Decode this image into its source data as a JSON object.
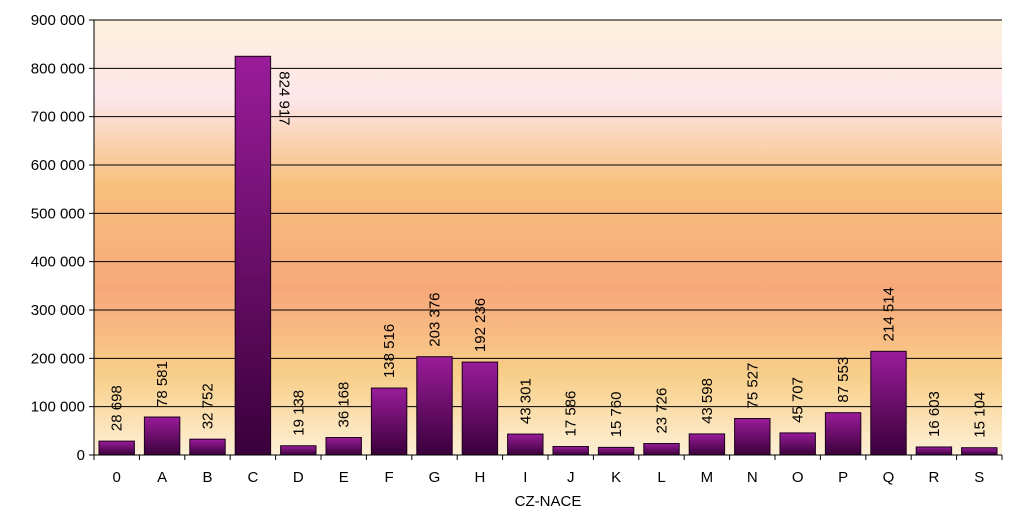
{
  "chart_data": {
    "type": "bar",
    "xlabel": "CZ-NACE",
    "ylabel": "",
    "ylim": [
      0,
      900000
    ],
    "yticks": [
      0,
      100000,
      200000,
      300000,
      400000,
      500000,
      600000,
      700000,
      800000,
      900000
    ],
    "ytick_labels": [
      "0",
      "100 000",
      "200 000",
      "300 000",
      "400 000",
      "500 000",
      "600 000",
      "700 000",
      "800 000",
      "900 000"
    ],
    "grid": true,
    "legend": "none",
    "categories": [
      "0",
      "A",
      "B",
      "C",
      "D",
      "E",
      "F",
      "G",
      "H",
      "I",
      "J",
      "K",
      "L",
      "M",
      "N",
      "O",
      "P",
      "Q",
      "R",
      "S"
    ],
    "values": [
      28698,
      78581,
      32752,
      824917,
      19138,
      36168,
      138516,
      203376,
      192236,
      43301,
      17586,
      15760,
      23726,
      43598,
      75527,
      45707,
      87553,
      214514,
      16603,
      15104
    ],
    "value_labels": [
      "28 698",
      "78 581",
      "32 752",
      "824 917",
      "19 138",
      "36 168",
      "138 516",
      "203 376",
      "192 236",
      "43 301",
      "17 586",
      "15 760",
      "23 726",
      "43 598",
      "75 527",
      "45 707",
      "87 553",
      "214 514",
      "16 603",
      "15 104"
    ],
    "colors": {
      "bar_top": "#9a1c9a",
      "bar_bottom": "#3a003a",
      "bar_stroke": "#1a001a",
      "background_top": "#fdf0dc",
      "background_pink": "#fde6ea",
      "background_orange": "#f7a87a",
      "background_gold": "#f6c97c",
      "gridline": "#000000"
    }
  }
}
